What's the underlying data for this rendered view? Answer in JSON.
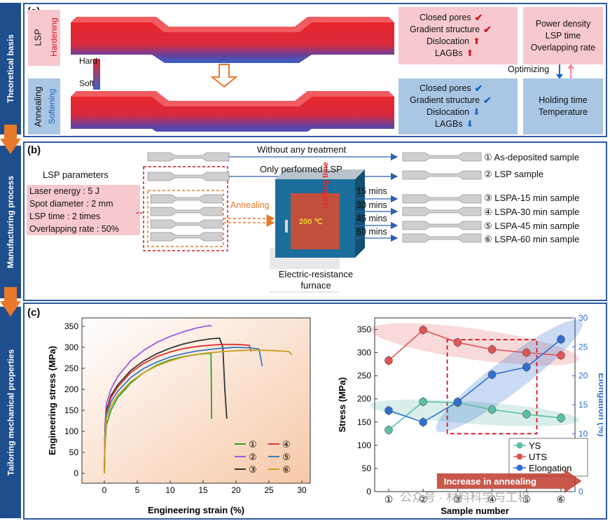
{
  "sidebar": {
    "section_a": "Theoretical basis",
    "section_b": "Manufacturing process",
    "section_c": "Tailoring mechanical properties"
  },
  "panel_a": {
    "label": "(a)",
    "lsp_title": "LSP",
    "lsp_sub": "Hardening",
    "anneal_title": "Annealing",
    "anneal_sub": "Softening",
    "hard_label": "Hard",
    "soft_label": "Soft",
    "lsp_effects": [
      "Closed pores",
      "Gradient structure",
      "Dislocation",
      "LAGBs"
    ],
    "lsp_params": [
      "Power density",
      "LSP time",
      "Overlapping rate"
    ],
    "anneal_effects": [
      "Closed pores",
      "Gradient structure",
      "Dislocation",
      "LAGBs"
    ],
    "anneal_params": [
      "Holding time",
      "Temperature"
    ],
    "optimizing_label": "Optimizing",
    "colors": {
      "hard": "#e8262b",
      "soft": "#3a62c8",
      "pink_box": "#f7c9cf",
      "blue_box": "#a9c6e4",
      "up_mark": "#d8131b",
      "down_mark": "#1565c0"
    }
  },
  "panel_b": {
    "label": "(b)",
    "lsp_params_title": "LSP parameters",
    "lsp_params": [
      "Laser energy : 5 J",
      "Spot diameter : 2 mm",
      "LSP time : 2 times",
      "Overlapping rate : 50%"
    ],
    "path_untreated": "Without any treatment",
    "path_lsp": "Only performed LSP",
    "annealing_label": "Annealing",
    "holding_time_label": "Holding time",
    "furnace_temp": "200 ℃",
    "furnace_name": "Electric-resistance furnace",
    "durations": [
      "15 mins",
      "30 mins",
      "45 mins",
      "60 mins"
    ],
    "samples": [
      "① As-deposited sample",
      "② LSP sample",
      "③ LSPA-15 min sample",
      "④ LSPA-30 min sample",
      "⑤ LSPA-45 min sample",
      "⑥ LSPA-60 min sample"
    ]
  },
  "panel_c": {
    "label": "(c)",
    "watermark": "公众号 · 材料科学与工程",
    "annealing_arrow_label": "Increase in annealing"
  },
  "chart_data": [
    {
      "type": "line",
      "xlabel": "Engineering strain (%)",
      "ylabel": "Engineering stress (MPa)",
      "xlim": [
        0,
        30
      ],
      "ylim": [
        0,
        360
      ],
      "xticks": [
        0,
        5,
        10,
        15,
        20,
        25,
        30
      ],
      "yticks": [
        0,
        50,
        100,
        150,
        200,
        250,
        300,
        350
      ],
      "legend_position": "bottom-right",
      "series": [
        {
          "name": "①",
          "color": "#2ca02c",
          "x": [
            0,
            0.1,
            0.3,
            1,
            2,
            4,
            6,
            8,
            10,
            12,
            14,
            16.2,
            16.3
          ],
          "y": [
            0,
            70,
            115,
            150,
            180,
            215,
            240,
            258,
            270,
            278,
            283,
            286,
            130
          ]
        },
        {
          "name": "②",
          "color": "#9b59e0",
          "x": [
            0,
            0.1,
            0.3,
            1,
            2,
            4,
            6,
            8,
            10,
            12,
            14,
            16,
            16.3
          ],
          "y": [
            0,
            110,
            165,
            200,
            230,
            268,
            293,
            312,
            326,
            337,
            346,
            352,
            350
          ]
        },
        {
          "name": "③",
          "color": "#333333",
          "x": [
            0,
            0.1,
            0.3,
            1,
            2,
            4,
            6,
            8,
            10,
            12,
            14,
            16,
            17.5,
            18,
            18.3,
            18.6
          ],
          "y": [
            0,
            100,
            150,
            185,
            210,
            245,
            268,
            285,
            298,
            308,
            315,
            320,
            322,
            300,
            200,
            130
          ]
        },
        {
          "name": "④",
          "color": "#e03030",
          "x": [
            0,
            0.1,
            0.3,
            1,
            2,
            4,
            6,
            8,
            10,
            12,
            14,
            16,
            18,
            20,
            22,
            22.3
          ],
          "y": [
            0,
            95,
            145,
            180,
            205,
            240,
            262,
            278,
            289,
            297,
            302,
            305,
            307,
            307,
            305,
            290
          ]
        },
        {
          "name": "⑤",
          "color": "#3a78c2",
          "x": [
            0,
            0.1,
            0.3,
            1,
            2,
            4,
            6,
            8,
            10,
            12,
            14,
            16,
            18,
            20,
            22,
            23.5,
            23.8,
            24
          ],
          "y": [
            0,
            90,
            140,
            170,
            195,
            228,
            250,
            265,
            277,
            285,
            291,
            295,
            298,
            300,
            299,
            296,
            270,
            255
          ]
        },
        {
          "name": "⑥",
          "color": "#c8a020",
          "x": [
            0,
            0.1,
            0.3,
            1,
            2,
            4,
            6,
            8,
            10,
            12,
            14,
            16,
            18,
            20,
            22,
            24,
            26,
            28,
            28.5
          ],
          "y": [
            0,
            85,
            130,
            160,
            185,
            218,
            240,
            256,
            268,
            277,
            283,
            287,
            290,
            292,
            293,
            293,
            292,
            290,
            282
          ]
        }
      ]
    },
    {
      "type": "line",
      "xlabel": "Sample number",
      "ylabel": "Stress (MPa)",
      "y2label": "Elongation (%)",
      "categories": [
        "①",
        "②",
        "③",
        "④",
        "⑤",
        "⑥"
      ],
      "ylim": [
        0,
        375
      ],
      "y2lim": [
        0,
        30
      ],
      "yticks": [
        0,
        50,
        100,
        150,
        200,
        250,
        300,
        350
      ],
      "y2ticks": [
        0,
        5,
        10,
        15,
        20,
        25,
        30
      ],
      "legend_position": "bottom-right",
      "series": [
        {
          "name": "YS",
          "axis": "left",
          "color": "#5bbfa6",
          "values": [
            133,
            194,
            192,
            177,
            167,
            159
          ]
        },
        {
          "name": "UTS",
          "axis": "left",
          "color": "#e05555",
          "values": [
            283,
            349,
            322,
            307,
            300,
            294
          ]
        },
        {
          "name": "Elongation",
          "axis": "right",
          "color": "#2f6fd0",
          "values": [
            14,
            12,
            15.5,
            20.2,
            21.5,
            26.3
          ]
        }
      ]
    }
  ]
}
